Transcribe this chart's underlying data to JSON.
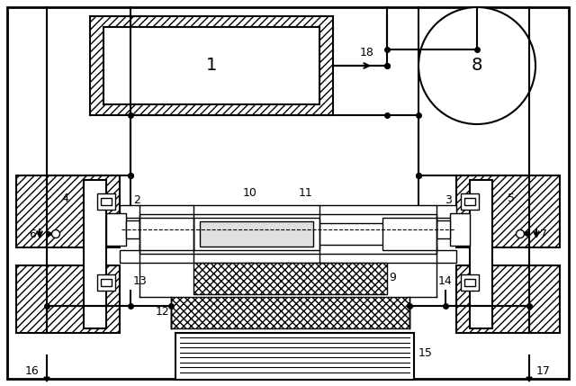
{
  "bg_color": "#ffffff",
  "line_color": "#000000",
  "figsize": [
    6.4,
    4.29
  ],
  "dpi": 100
}
